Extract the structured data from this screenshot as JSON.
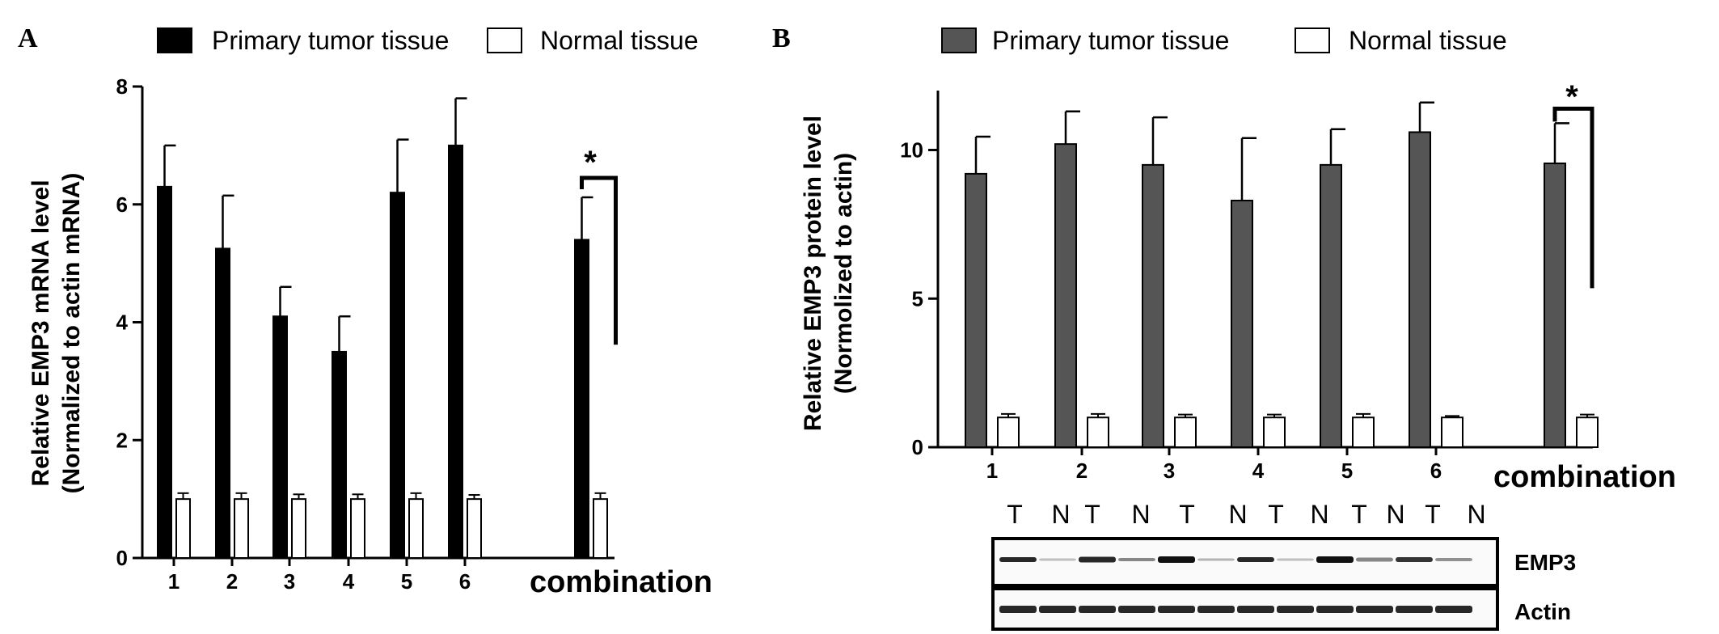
{
  "panels": {
    "a": {
      "letter": "A",
      "legend": [
        {
          "label": "Primary tumor tissue",
          "color": "#000000"
        },
        {
          "label": "Normal tissue",
          "color": "#ffffff"
        }
      ],
      "ylabel_line1": "Relative EMP3 mRNA  level",
      "ylabel_line2": "(Normalized to actin mRNA)",
      "significance": "*"
    },
    "b": {
      "letter": "B",
      "legend": [
        {
          "label": "Primary tumor tissue",
          "color": "#555555"
        },
        {
          "label": "Normal tissue",
          "color": "#ffffff"
        }
      ],
      "ylabel_line1": "Relative EMP3 protein level",
      "ylabel_line2": "(Normolized to actin)",
      "significance": "*",
      "blot": {
        "lanes": [
          "T",
          "N",
          "T",
          "N",
          "T",
          "N",
          "T",
          "N",
          "T",
          "N",
          "T",
          "N"
        ],
        "bands": [
          "EMP3",
          "Actin"
        ]
      }
    }
  },
  "chart_data": [
    {
      "type": "bar",
      "categories": [
        "1",
        "2",
        "3",
        "4",
        "5",
        "6",
        "combination"
      ],
      "series": [
        {
          "name": "Primary tumor tissue",
          "values": [
            6.3,
            5.25,
            4.1,
            3.5,
            6.2,
            7.0,
            5.4
          ],
          "errors": [
            0.7,
            0.9,
            0.5,
            0.6,
            0.9,
            0.8,
            0.72
          ]
        },
        {
          "name": "Normal tissue",
          "values": [
            1.0,
            1.0,
            1.0,
            1.0,
            1.0,
            1.0,
            1.0
          ],
          "errors": [
            0.1,
            0.1,
            0.08,
            0.08,
            0.1,
            0.07,
            0.1
          ]
        }
      ],
      "ylim": [
        0,
        8
      ],
      "yticks": [
        "0",
        "2",
        "4",
        "6",
        "8"
      ],
      "annotations": [
        "*"
      ]
    },
    {
      "type": "bar",
      "categories": [
        "1",
        "2",
        "3",
        "4",
        "5",
        "6",
        "combination"
      ],
      "series": [
        {
          "name": "Primary tumor tissue",
          "values": [
            9.2,
            10.2,
            9.5,
            8.3,
            9.5,
            10.6,
            9.55
          ],
          "errors": [
            1.25,
            1.1,
            1.6,
            2.1,
            1.2,
            1.0,
            1.35
          ]
        },
        {
          "name": "Normal tissue",
          "values": [
            1.0,
            1.0,
            1.0,
            1.0,
            1.0,
            1.0,
            1.0
          ],
          "errors": [
            0.12,
            0.12,
            0.1,
            0.1,
            0.12,
            0.05,
            0.1
          ]
        }
      ],
      "ylim": [
        0,
        12
      ],
      "yticks": [
        "0",
        "5",
        "10"
      ],
      "annotations": [
        "*"
      ]
    }
  ]
}
